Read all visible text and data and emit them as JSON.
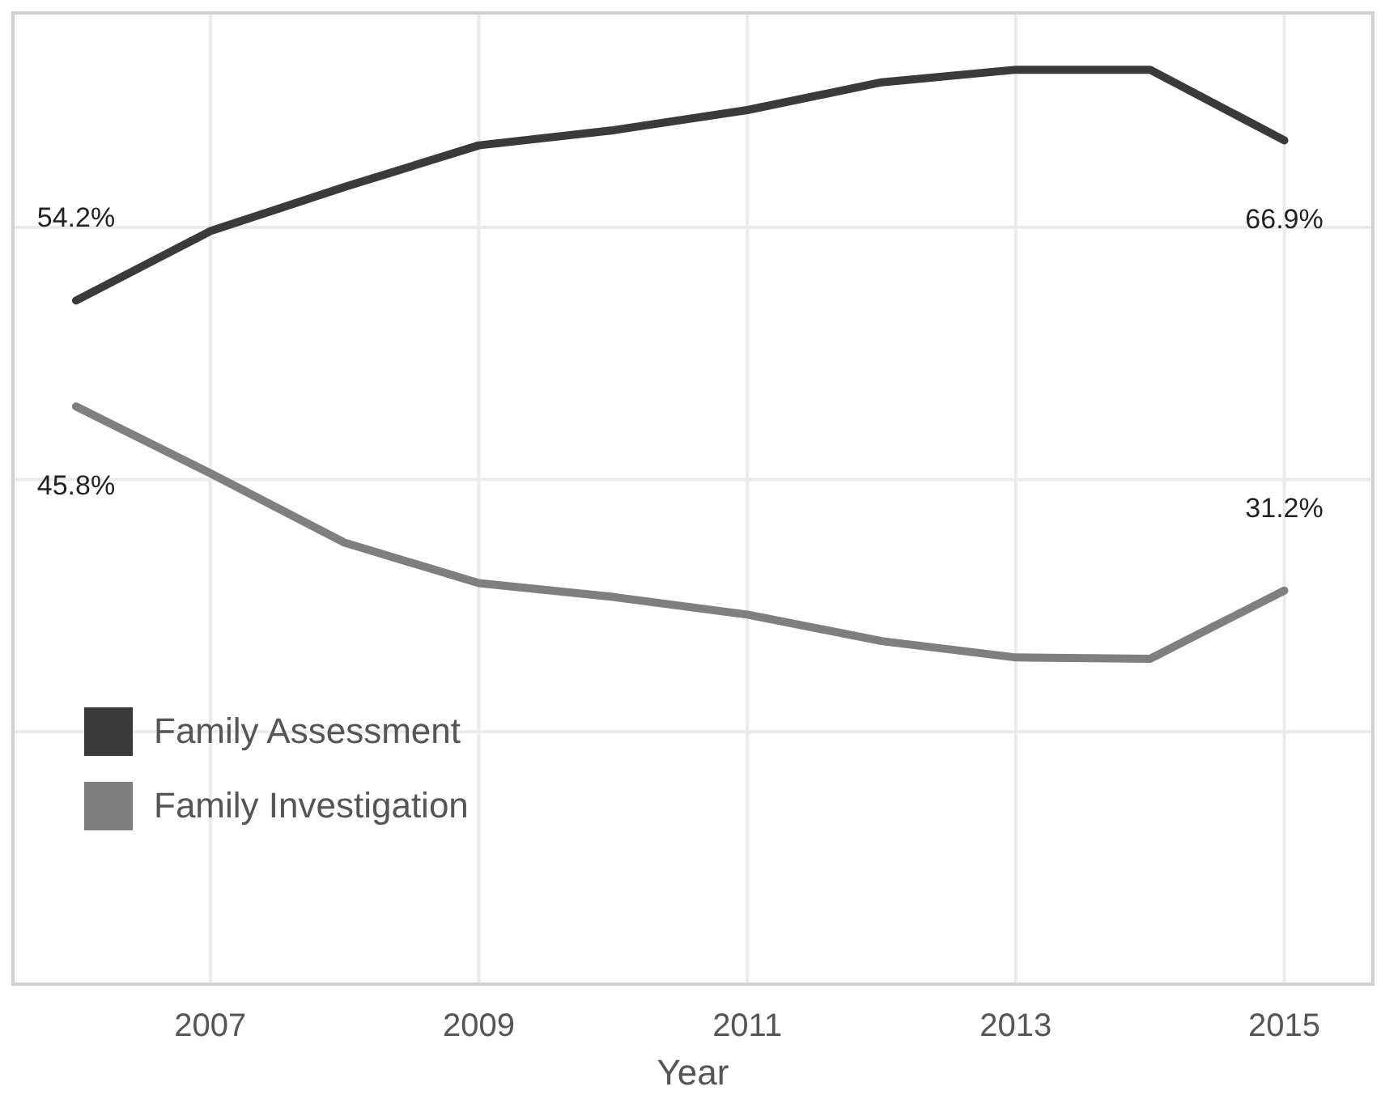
{
  "chart_data": {
    "type": "line",
    "xlabel": "Year",
    "x": [
      2006,
      2007,
      2008,
      2009,
      2010,
      2011,
      2012,
      2013,
      2014,
      2015
    ],
    "xlim": [
      2005.53,
      2015.66
    ],
    "xticks": [
      2007,
      2009,
      2011,
      2013,
      2015
    ],
    "ylim": [
      0,
      77
    ],
    "yticks": [
      {
        "value": 20,
        "label": null
      },
      {
        "value": 40,
        "label": null
      },
      {
        "value": 60,
        "label": null
      }
    ],
    "tick_labels": "x",
    "grid": true,
    "legend": "left",
    "series": [
      {
        "name": "Family Assessment",
        "color": "#3a3a3a",
        "values": [
          54.2,
          59.7,
          63.2,
          66.5,
          67.7,
          69.3,
          71.5,
          72.5,
          72.5,
          66.9
        ],
        "value_labels": [
          "54.2%",
          null,
          null,
          null,
          null,
          null,
          null,
          null,
          null,
          "66.9%"
        ]
      },
      {
        "name": "Family Investigation",
        "color": "#7f7f7f",
        "values": [
          45.8,
          40.5,
          35.0,
          31.8,
          30.7,
          29.3,
          27.2,
          25.9,
          25.8,
          31.2
        ],
        "value_labels": [
          "45.8%",
          null,
          null,
          null,
          null,
          null,
          null,
          null,
          null,
          "31.2%"
        ]
      }
    ]
  }
}
